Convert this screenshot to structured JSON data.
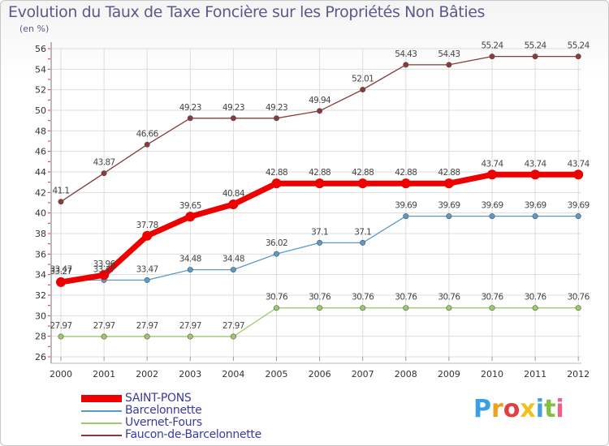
{
  "title": "Evolution du Taux de Taxe Foncière sur les Propriétés Non Bâties",
  "subtitle": "(en %)",
  "brand": {
    "letters": [
      "P",
      "r",
      "o",
      "x",
      "i",
      "t",
      "i"
    ],
    "colors": [
      "#3aa0e0",
      "#f0a020",
      "#e04040",
      "#f0c020",
      "#40a0e0",
      "#80c040",
      "#f06080"
    ]
  },
  "chart_data": {
    "type": "line",
    "x": [
      "2000",
      "2001",
      "2002",
      "2003",
      "2004",
      "2005",
      "2006",
      "2007",
      "2008",
      "2009",
      "2010",
      "2011",
      "2012"
    ],
    "ylim": [
      26,
      56
    ],
    "yticks": [
      "26",
      "28",
      "30",
      "32",
      "34",
      "36",
      "38",
      "40",
      "42",
      "44",
      "46",
      "48",
      "50",
      "52",
      "54",
      "56"
    ],
    "grid": true,
    "legend_position": "bottom-left",
    "series": [
      {
        "name": "SAINT-PONS",
        "color": "#ee0000",
        "values": [
          33.27,
          33.96,
          37.78,
          39.65,
          40.84,
          42.88,
          42.88,
          42.88,
          42.88,
          42.88,
          43.74,
          43.74,
          43.74
        ],
        "labels": [
          "33.27",
          "33.96",
          "37.78",
          "39.65",
          "40.84",
          "42.88",
          "42.88",
          "42.88",
          "42.88",
          "42.88",
          "43.74",
          "43.74",
          "43.74"
        ]
      },
      {
        "name": "Barcelonnette",
        "color": "#5a9acb",
        "values": [
          33.47,
          33.47,
          33.47,
          34.48,
          34.48,
          36.02,
          37.1,
          37.1,
          39.69,
          39.69,
          39.69,
          39.69,
          39.69
        ],
        "labels": [
          "33.47",
          "33.47",
          "33.47",
          "34.48",
          "34.48",
          "36.02",
          "37.1",
          "37.1",
          "39.69",
          "39.69",
          "39.69",
          "39.69",
          "39.69"
        ]
      },
      {
        "name": "Uvernet-Fours",
        "color": "#99cc66",
        "values": [
          27.97,
          27.97,
          27.97,
          27.97,
          27.97,
          30.76,
          30.76,
          30.76,
          30.76,
          30.76,
          30.76,
          30.76,
          30.76
        ],
        "labels": [
          "27.97",
          "27.97",
          "27.97",
          "27.97",
          "27.97",
          "30.76",
          "30.76",
          "30.76",
          "30.76",
          "30.76",
          "30.76",
          "30.76",
          "30.76"
        ]
      },
      {
        "name": "Faucon-de-Barcelonnette",
        "color": "#8a3a3a",
        "values": [
          41.1,
          43.87,
          46.66,
          49.23,
          49.23,
          49.23,
          49.94,
          52.01,
          54.43,
          54.43,
          55.24,
          55.24,
          55.24
        ],
        "labels": [
          "41.1",
          "43.87",
          "46.66",
          "49.23",
          "49.23",
          "49.23",
          "49.94",
          "52.01",
          "54.43",
          "54.43",
          "55.24",
          "55.24",
          "55.24"
        ]
      }
    ]
  }
}
